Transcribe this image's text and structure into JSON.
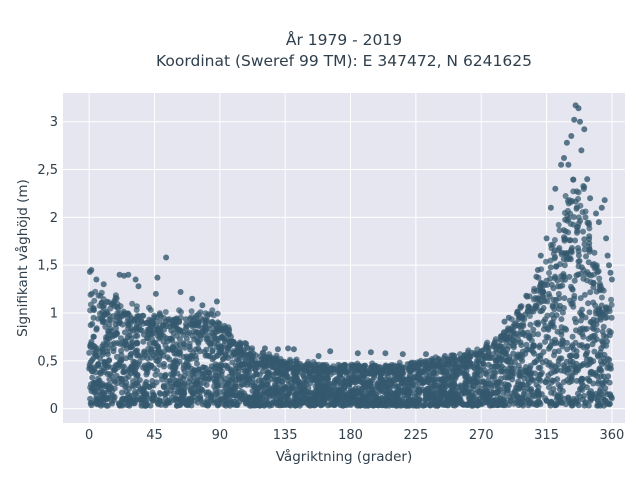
{
  "chart_data": {
    "type": "scatter",
    "title_line1": "År 1979 - 2019",
    "title_line2": "Koordinat (Sweref 99 TM): E 347472, N 6241625",
    "xlabel": "Vågriktning (grader)",
    "ylabel": "Signifikant våghöjd (m)",
    "xlim": [
      -18,
      369
    ],
    "ylim": [
      -0.15,
      3.3
    ],
    "xticks": [
      0,
      45,
      90,
      135,
      180,
      225,
      270,
      315,
      360
    ],
    "xtick_labels": [
      "0",
      "45",
      "90",
      "135",
      "180",
      "225",
      "270",
      "315",
      "360"
    ],
    "yticks": [
      0,
      0.5,
      1,
      1.5,
      2,
      2.5,
      3
    ],
    "ytick_labels": [
      "0",
      "0,5",
      "1",
      "1,5",
      "2",
      "2,5",
      "3"
    ],
    "grid": true,
    "marker_color": "#34586e",
    "plot_background": "#e5e6ef",
    "envelope": {
      "direction": [
        0,
        10,
        20,
        30,
        45,
        60,
        75,
        85,
        90,
        100,
        110,
        120,
        135,
        150,
        165,
        180,
        200,
        225,
        250,
        270,
        285,
        300,
        310,
        320,
        325,
        330,
        335,
        340,
        345,
        350,
        355,
        360
      ],
      "bulk_max_height": [
        1.1,
        1.1,
        1.05,
        0.98,
        0.95,
        0.92,
        0.9,
        0.92,
        0.88,
        0.68,
        0.58,
        0.52,
        0.48,
        0.44,
        0.42,
        0.42,
        0.42,
        0.45,
        0.5,
        0.58,
        0.72,
        1.0,
        1.25,
        1.6,
        1.85,
        2.05,
        2.3,
        2.2,
        1.8,
        1.5,
        1.1,
        1.0
      ]
    },
    "extreme_points": [
      {
        "x": 0.5,
        "y": 1.43
      },
      {
        "x": 1.5,
        "y": 1.45
      },
      {
        "x": 5,
        "y": 1.35
      },
      {
        "x": 10,
        "y": 1.3
      },
      {
        "x": 21,
        "y": 1.4
      },
      {
        "x": 24,
        "y": 1.39
      },
      {
        "x": 27,
        "y": 1.4
      },
      {
        "x": 32,
        "y": 1.35
      },
      {
        "x": 34,
        "y": 1.28
      },
      {
        "x": 47,
        "y": 1.37
      },
      {
        "x": 46,
        "y": 1.2
      },
      {
        "x": 53,
        "y": 1.58
      },
      {
        "x": 63,
        "y": 1.22
      },
      {
        "x": 71,
        "y": 1.15
      },
      {
        "x": 88,
        "y": 1.12
      },
      {
        "x": 78,
        "y": 1.08
      },
      {
        "x": 108,
        "y": 0.68
      },
      {
        "x": 121,
        "y": 0.63
      },
      {
        "x": 130,
        "y": 0.62
      },
      {
        "x": 137,
        "y": 0.63
      },
      {
        "x": 141,
        "y": 0.62
      },
      {
        "x": 158,
        "y": 0.55
      },
      {
        "x": 166,
        "y": 0.6
      },
      {
        "x": 185,
        "y": 0.58
      },
      {
        "x": 194,
        "y": 0.59
      },
      {
        "x": 204,
        "y": 0.58
      },
      {
        "x": 216,
        "y": 0.57
      },
      {
        "x": 232,
        "y": 0.57
      },
      {
        "x": 245,
        "y": 0.55
      },
      {
        "x": 262,
        "y": 0.55
      },
      {
        "x": 270,
        "y": 0.6
      },
      {
        "x": 279,
        "y": 0.68
      },
      {
        "x": 284,
        "y": 0.75
      },
      {
        "x": 286,
        "y": 0.91
      },
      {
        "x": 289,
        "y": 0.95
      },
      {
        "x": 296,
        "y": 0.98
      },
      {
        "x": 301,
        "y": 1.18
      },
      {
        "x": 304,
        "y": 1.05
      },
      {
        "x": 308,
        "y": 1.38
      },
      {
        "x": 309,
        "y": 1.45
      },
      {
        "x": 311,
        "y": 1.6
      },
      {
        "x": 315,
        "y": 1.78
      },
      {
        "x": 318,
        "y": 2.1
      },
      {
        "x": 321,
        "y": 2.3
      },
      {
        "x": 325,
        "y": 2.55
      },
      {
        "x": 327,
        "y": 2.62
      },
      {
        "x": 329,
        "y": 2.78
      },
      {
        "x": 330,
        "y": 2.55
      },
      {
        "x": 332,
        "y": 2.85
      },
      {
        "x": 334,
        "y": 3.02
      },
      {
        "x": 335,
        "y": 3.17
      },
      {
        "x": 337,
        "y": 3.14
      },
      {
        "x": 338,
        "y": 3.0
      },
      {
        "x": 339,
        "y": 2.7
      },
      {
        "x": 341,
        "y": 2.92
      },
      {
        "x": 343,
        "y": 2.4
      },
      {
        "x": 345,
        "y": 2.2
      },
      {
        "x": 349,
        "y": 2.04
      },
      {
        "x": 351,
        "y": 1.95
      },
      {
        "x": 353,
        "y": 2.1
      },
      {
        "x": 355,
        "y": 2.18
      },
      {
        "x": 356,
        "y": 1.78
      },
      {
        "x": 357,
        "y": 1.6
      },
      {
        "x": 358,
        "y": 1.5
      },
      {
        "x": 359,
        "y": 1.42
      },
      {
        "x": 360,
        "y": 1.35
      }
    ]
  }
}
